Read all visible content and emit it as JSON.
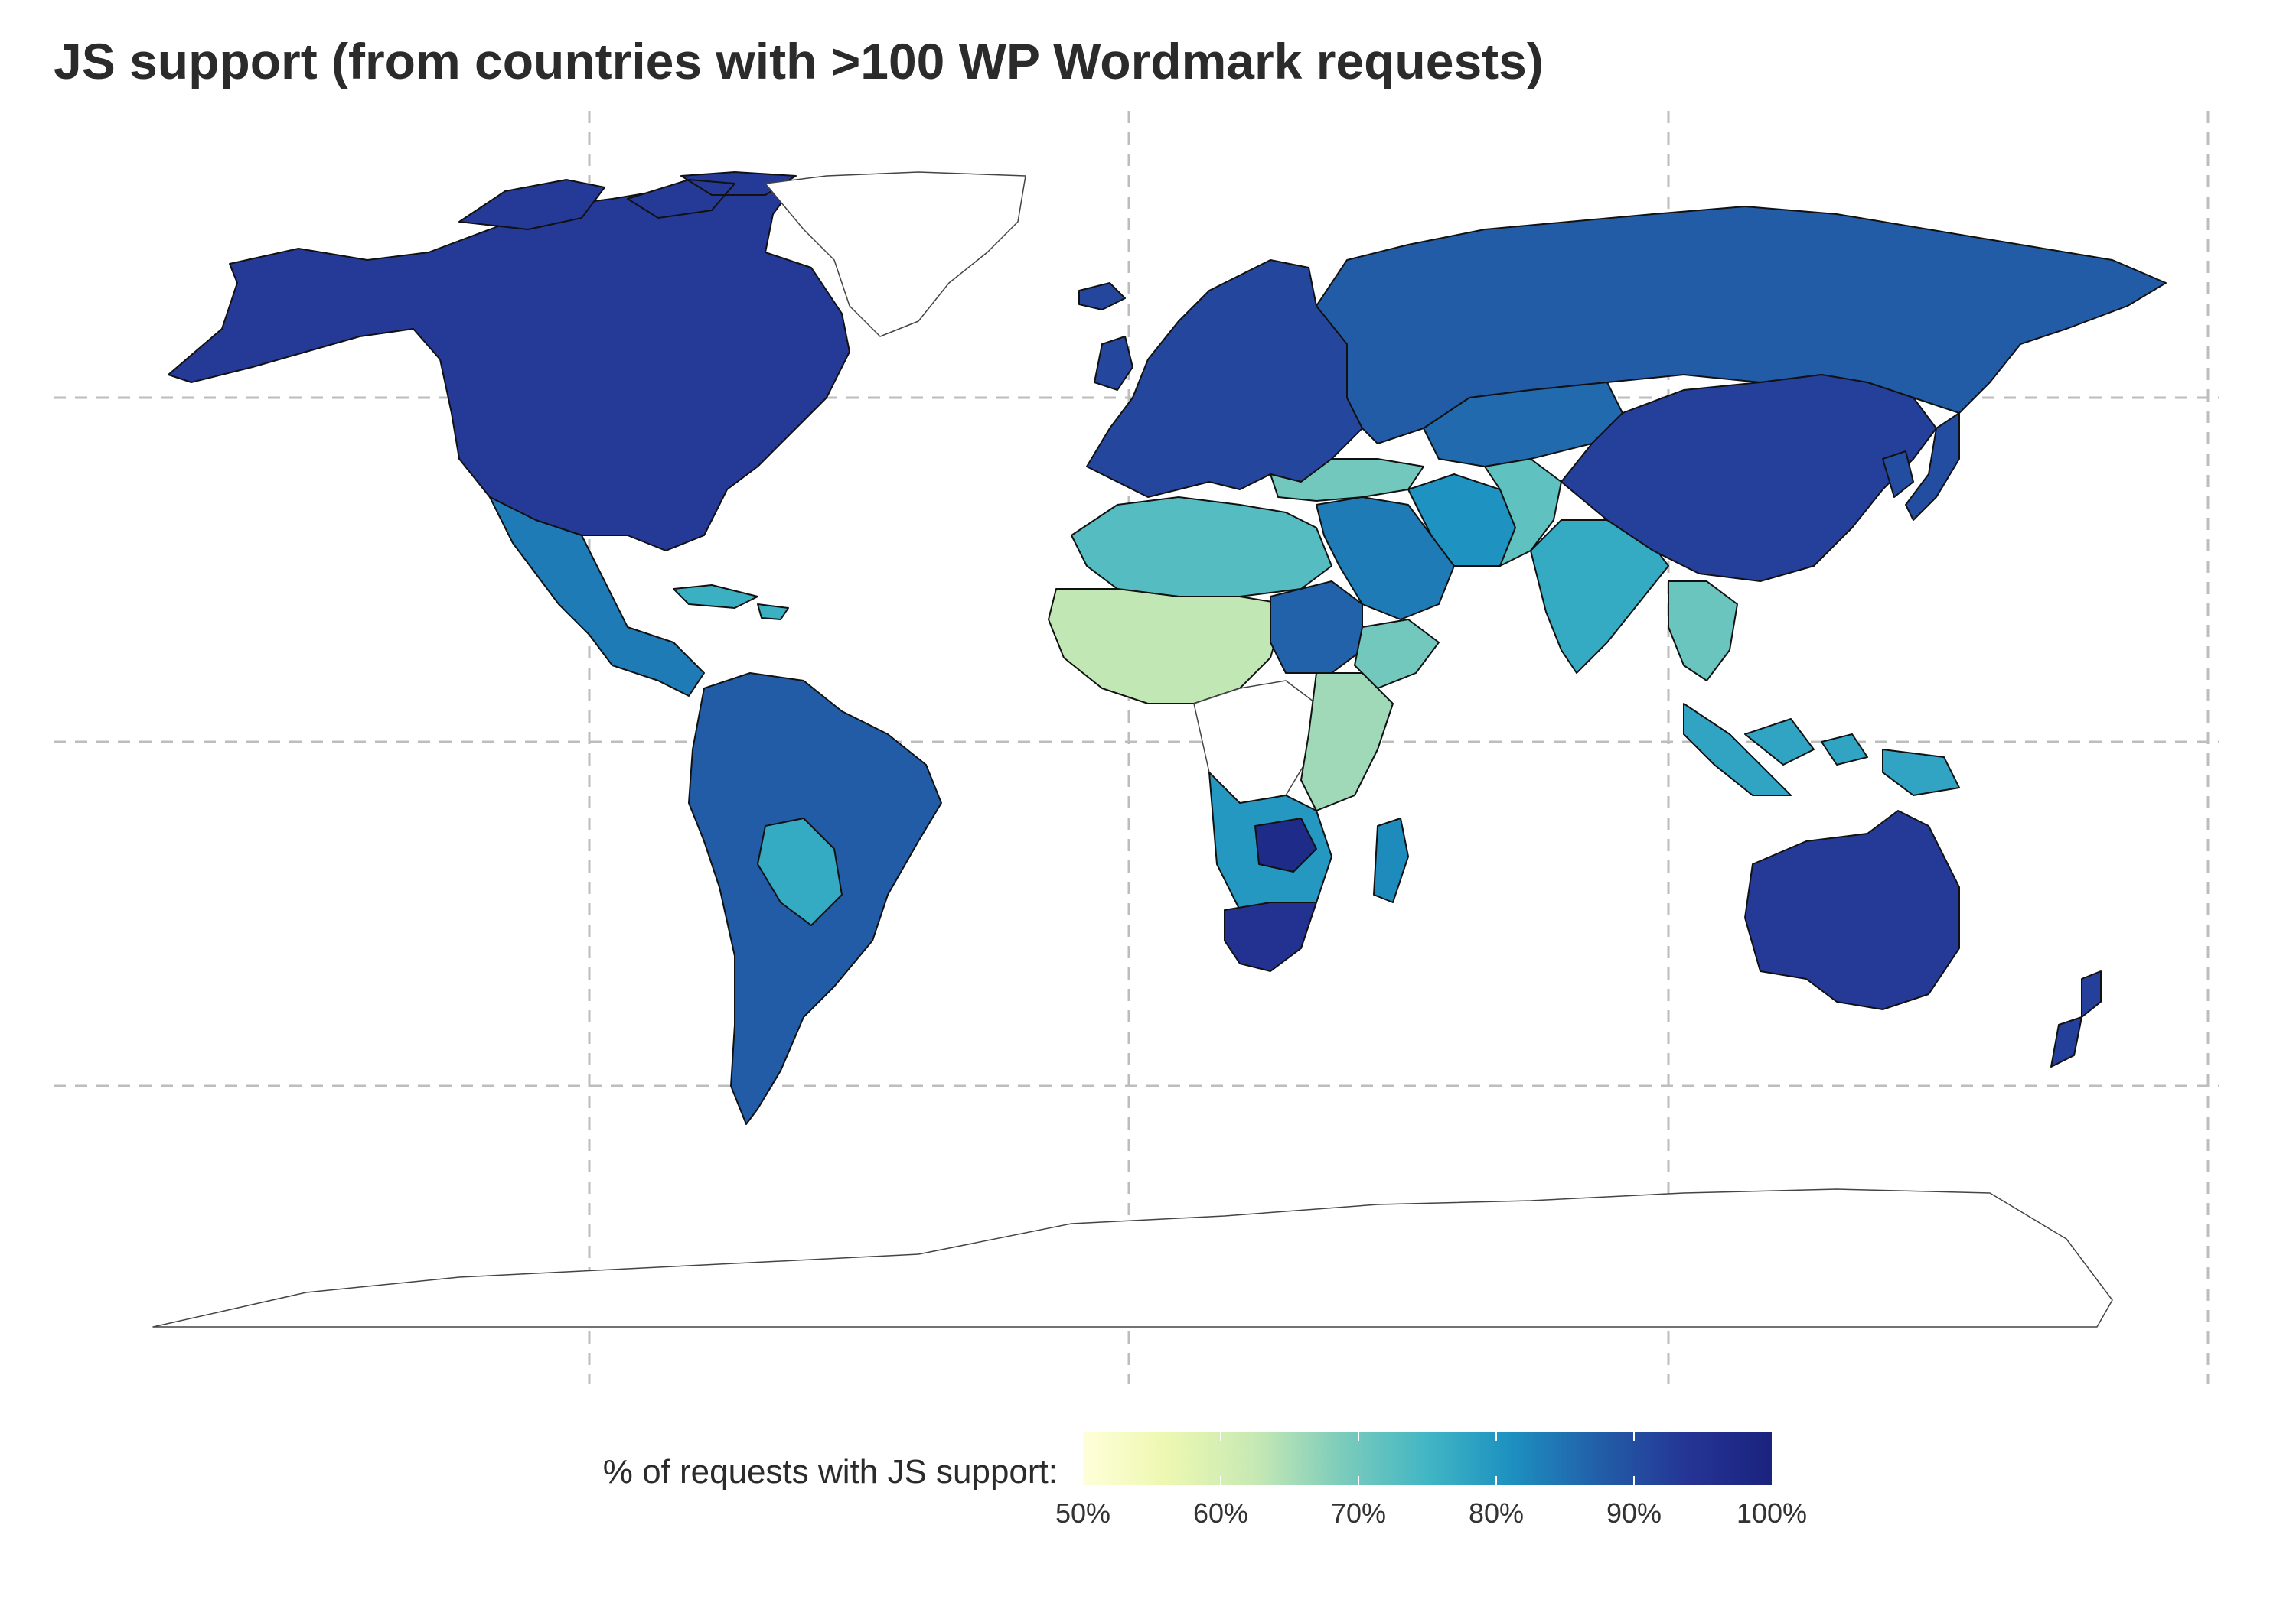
{
  "title": "JS support (from countries with >100 WP Wordmark requests)",
  "legend": {
    "title": "% of requests with JS support:",
    "min": 50,
    "max": 100,
    "ticks": [
      "50%",
      "60%",
      "70%",
      "80%",
      "90%",
      "100%"
    ],
    "tick_values": [
      50,
      60,
      70,
      80,
      90,
      100
    ],
    "palette": "YlGnBu",
    "colors": [
      "#ffffd9",
      "#edf8b1",
      "#c7e9b4",
      "#7fcdbb",
      "#41b6c4",
      "#1d91c0",
      "#225ea8",
      "#253494",
      "#1a237e"
    ]
  },
  "regions": [
    {
      "name": "North America",
      "value": 93
    },
    {
      "name": "Greenland",
      "value": null
    },
    {
      "name": "Mexico & Central America",
      "value": 84
    },
    {
      "name": "Caribbean",
      "value": 76
    },
    {
      "name": "South America",
      "value": 88
    },
    {
      "name": "Bolivia / Paraguay",
      "value": 77
    },
    {
      "name": "Europe",
      "value": 91
    },
    {
      "name": "Iceland",
      "value": 91
    },
    {
      "name": "Russia",
      "value": 88
    },
    {
      "name": "Central Asia",
      "value": 86
    },
    {
      "name": "Turkey / Levant",
      "value": 70
    },
    {
      "name": "Middle East",
      "value": 84
    },
    {
      "name": "Iran",
      "value": 81
    },
    {
      "name": "Afghanistan / Pakistan",
      "value": 72
    },
    {
      "name": "South Asia",
      "value": 77
    },
    {
      "name": "China / Mongolia",
      "value": 92
    },
    {
      "name": "Korea / Japan",
      "value": 90
    },
    {
      "name": "Southeast Asia",
      "value": 71
    },
    {
      "name": "Indonesia / Malaysia",
      "value": 78
    },
    {
      "name": "North Africa",
      "value": 73
    },
    {
      "name": "Sahel / West Africa",
      "value": 63
    },
    {
      "name": "Sudan",
      "value": 87
    },
    {
      "name": "Horn of Africa",
      "value": 70
    },
    {
      "name": "Central Africa",
      "value": null
    },
    {
      "name": "East Africa",
      "value": 66
    },
    {
      "name": "Southern Africa",
      "value": 80
    },
    {
      "name": "South Africa",
      "value": 97
    },
    {
      "name": "Zambia",
      "value": 95
    },
    {
      "name": "Madagascar",
      "value": 82
    },
    {
      "name": "Australia",
      "value": 93
    },
    {
      "name": "New Zealand",
      "value": 92
    },
    {
      "name": "Antarctica",
      "value": null
    }
  ]
}
